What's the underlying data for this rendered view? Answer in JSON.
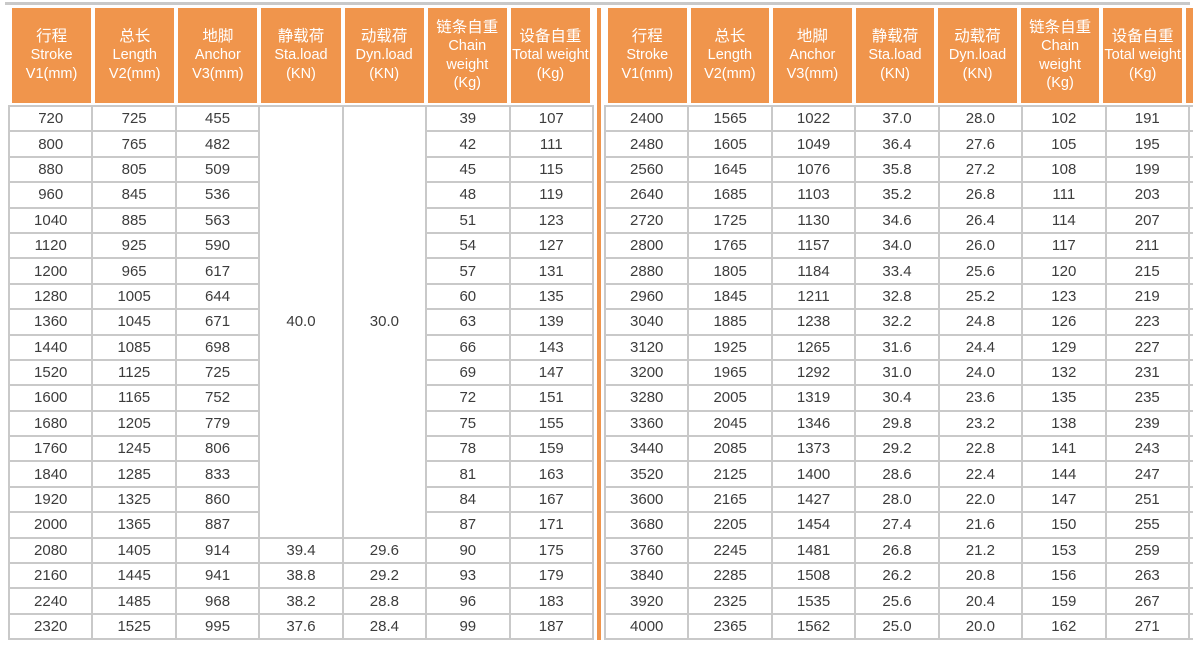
{
  "colors": {
    "header_bg": "#F0954C",
    "divider": "#F0954C",
    "grid": "#C9C9C9",
    "cell_bg": "#FFFFFF",
    "text": "#3C3C3C",
    "header_text": "#FFFFFF"
  },
  "table": {
    "columns": [
      {
        "cn": "行程",
        "en": "Stroke",
        "unit": "V1(mm)"
      },
      {
        "cn": "总长",
        "en": "Length",
        "unit": "V2(mm)"
      },
      {
        "cn": "地脚",
        "en": "Anchor",
        "unit": "V3(mm)"
      },
      {
        "cn": "静载荷",
        "en": "Sta.load",
        "unit": "(KN)"
      },
      {
        "cn": "动载荷",
        "en": "Dyn.load",
        "unit": "(KN)"
      },
      {
        "cn": "链条自重",
        "en": "Chain weight",
        "unit": "(Kg)"
      },
      {
        "cn": "设备自重",
        "en": "Total weight",
        "unit": "(Kg)"
      }
    ],
    "left": {
      "rows": [
        [
          "720",
          "725",
          "455",
          {
            "v": "40.0",
            "rs": 17
          },
          {
            "v": "30.0",
            "rs": 17
          },
          "39",
          "107"
        ],
        [
          "800",
          "765",
          "482",
          null,
          null,
          "42",
          "111"
        ],
        [
          "880",
          "805",
          "509",
          null,
          null,
          "45",
          "115"
        ],
        [
          "960",
          "845",
          "536",
          null,
          null,
          "48",
          "119"
        ],
        [
          "1040",
          "885",
          "563",
          null,
          null,
          "51",
          "123"
        ],
        [
          "1120",
          "925",
          "590",
          null,
          null,
          "54",
          "127"
        ],
        [
          "1200",
          "965",
          "617",
          null,
          null,
          "57",
          "131"
        ],
        [
          "1280",
          "1005",
          "644",
          null,
          null,
          "60",
          "135"
        ],
        [
          "1360",
          "1045",
          "671",
          null,
          null,
          "63",
          "139"
        ],
        [
          "1440",
          "1085",
          "698",
          null,
          null,
          "66",
          "143"
        ],
        [
          "1520",
          "1125",
          "725",
          null,
          null,
          "69",
          "147"
        ],
        [
          "1600",
          "1165",
          "752",
          null,
          null,
          "72",
          "151"
        ],
        [
          "1680",
          "1205",
          "779",
          null,
          null,
          "75",
          "155"
        ],
        [
          "1760",
          "1245",
          "806",
          null,
          null,
          "78",
          "159"
        ],
        [
          "1840",
          "1285",
          "833",
          null,
          null,
          "81",
          "163"
        ],
        [
          "1920",
          "1325",
          "860",
          null,
          null,
          "84",
          "167"
        ],
        [
          "2000",
          "1365",
          "887",
          null,
          null,
          "87",
          "171"
        ],
        [
          "2080",
          "1405",
          "914",
          "39.4",
          "29.6",
          "90",
          "175"
        ],
        [
          "2160",
          "1445",
          "941",
          "38.8",
          "29.2",
          "93",
          "179"
        ],
        [
          "2240",
          "1485",
          "968",
          "38.2",
          "28.8",
          "96",
          "183"
        ],
        [
          "2320",
          "1525",
          "995",
          "37.6",
          "28.4",
          "99",
          "187"
        ]
      ]
    },
    "right": {
      "rows": [
        [
          "2400",
          "1565",
          "1022",
          "37.0",
          "28.0",
          "102",
          "191"
        ],
        [
          "2480",
          "1605",
          "1049",
          "36.4",
          "27.6",
          "105",
          "195"
        ],
        [
          "2560",
          "1645",
          "1076",
          "35.8",
          "27.2",
          "108",
          "199"
        ],
        [
          "2640",
          "1685",
          "1103",
          "35.2",
          "26.8",
          "111",
          "203"
        ],
        [
          "2720",
          "1725",
          "1130",
          "34.6",
          "26.4",
          "114",
          "207"
        ],
        [
          "2800",
          "1765",
          "1157",
          "34.0",
          "26.0",
          "117",
          "211"
        ],
        [
          "2880",
          "1805",
          "1184",
          "33.4",
          "25.6",
          "120",
          "215"
        ],
        [
          "2960",
          "1845",
          "1211",
          "32.8",
          "25.2",
          "123",
          "219"
        ],
        [
          "3040",
          "1885",
          "1238",
          "32.2",
          "24.8",
          "126",
          "223"
        ],
        [
          "3120",
          "1925",
          "1265",
          "31.6",
          "24.4",
          "129",
          "227"
        ],
        [
          "3200",
          "1965",
          "1292",
          "31.0",
          "24.0",
          "132",
          "231"
        ],
        [
          "3280",
          "2005",
          "1319",
          "30.4",
          "23.6",
          "135",
          "235"
        ],
        [
          "3360",
          "2045",
          "1346",
          "29.8",
          "23.2",
          "138",
          "239"
        ],
        [
          "3440",
          "2085",
          "1373",
          "29.2",
          "22.8",
          "141",
          "243"
        ],
        [
          "3520",
          "2125",
          "1400",
          "28.6",
          "22.4",
          "144",
          "247"
        ],
        [
          "3600",
          "2165",
          "1427",
          "28.0",
          "22.0",
          "147",
          "251"
        ],
        [
          "3680",
          "2205",
          "1454",
          "27.4",
          "21.6",
          "150",
          "255"
        ],
        [
          "3760",
          "2245",
          "1481",
          "26.8",
          "21.2",
          "153",
          "259"
        ],
        [
          "3840",
          "2285",
          "1508",
          "26.2",
          "20.8",
          "156",
          "263"
        ],
        [
          "3920",
          "2325",
          "1535",
          "25.6",
          "20.4",
          "159",
          "267"
        ],
        [
          "4000",
          "2365",
          "1562",
          "25.0",
          "20.0",
          "162",
          "271"
        ]
      ]
    }
  }
}
